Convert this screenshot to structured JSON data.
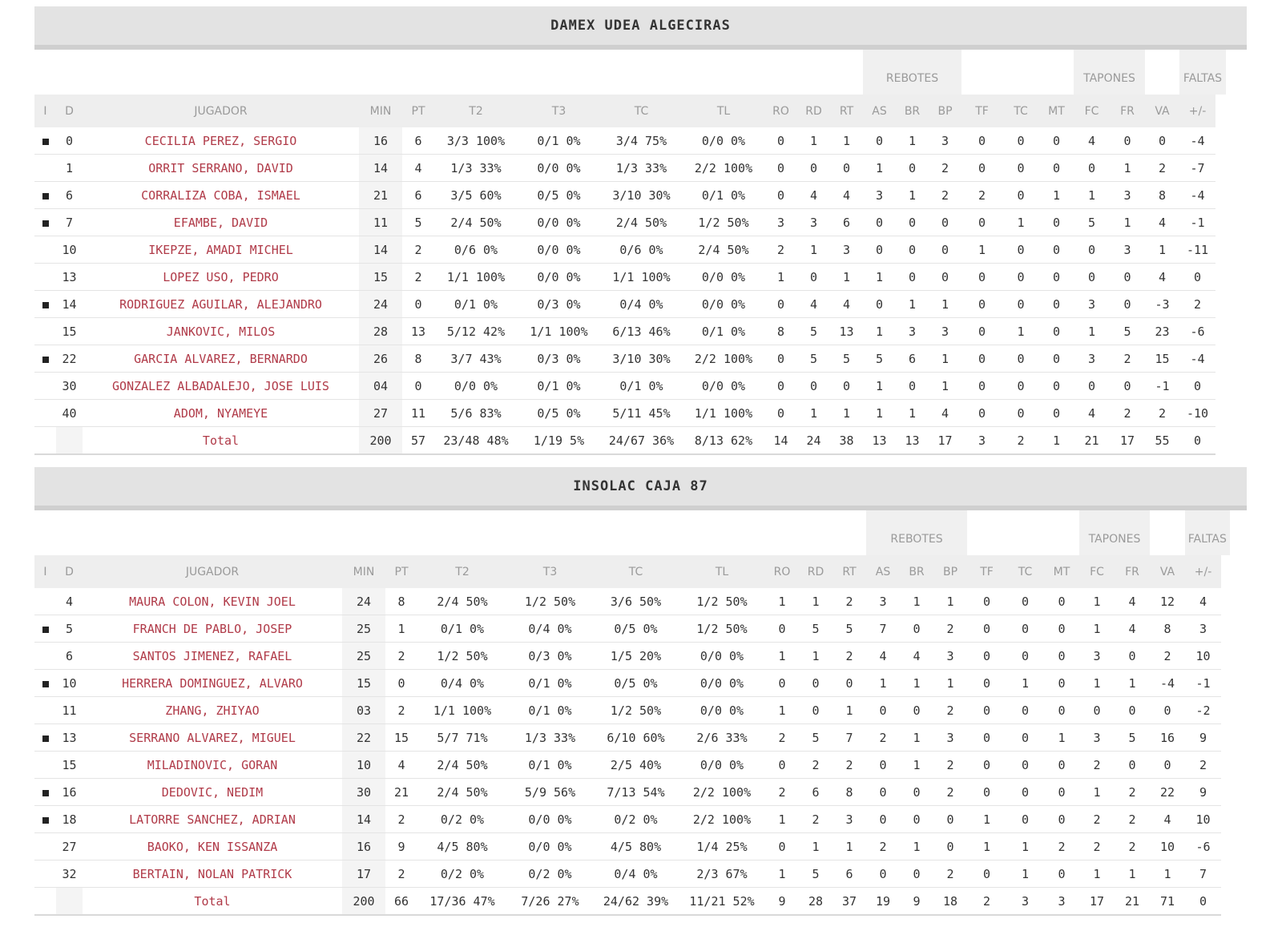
{
  "columns": [
    "I",
    "D",
    "JUGADOR",
    "MIN",
    "PT",
    "T2",
    "T3",
    "TC",
    "TL",
    "RO",
    "RD",
    "RT",
    "AS",
    "BR",
    "BP",
    "TF",
    "TC",
    "MT",
    "FC",
    "FR",
    "VA",
    "+/-"
  ],
  "groups": {
    "rebotes": "REBOTES",
    "tapones": "TAPONES",
    "faltas": "FALTAS"
  },
  "teams": [
    {
      "name": "DAMEX UDEA ALGECIRAS",
      "rows": [
        {
          "starter": true,
          "d": "0",
          "name": "CECILIA PEREZ, SERGIO",
          "stats": [
            "16",
            "6",
            "3/3 100%",
            "0/1 0%",
            "3/4 75%",
            "0/0 0%",
            "0",
            "1",
            "1",
            "0",
            "1",
            "3",
            "0",
            "0",
            "0",
            "4",
            "0",
            "0",
            "-4"
          ]
        },
        {
          "starter": false,
          "d": "1",
          "name": "ORRIT SERRANO, DAVID",
          "stats": [
            "14",
            "4",
            "1/3 33%",
            "0/0 0%",
            "1/3 33%",
            "2/2 100%",
            "0",
            "0",
            "0",
            "1",
            "0",
            "2",
            "0",
            "0",
            "0",
            "0",
            "1",
            "2",
            "-7"
          ]
        },
        {
          "starter": true,
          "d": "6",
          "name": "CORRALIZA COBA, ISMAEL",
          "stats": [
            "21",
            "6",
            "3/5 60%",
            "0/5 0%",
            "3/10 30%",
            "0/1 0%",
            "0",
            "4",
            "4",
            "3",
            "1",
            "2",
            "2",
            "0",
            "1",
            "1",
            "3",
            "8",
            "-4"
          ]
        },
        {
          "starter": true,
          "d": "7",
          "name": "EFAMBE, DAVID",
          "stats": [
            "11",
            "5",
            "2/4 50%",
            "0/0 0%",
            "2/4 50%",
            "1/2 50%",
            "3",
            "3",
            "6",
            "0",
            "0",
            "0",
            "0",
            "1",
            "0",
            "5",
            "1",
            "4",
            "-1"
          ]
        },
        {
          "starter": false,
          "d": "10",
          "name": "IKEPZE, AMADI MICHEL",
          "stats": [
            "14",
            "2",
            "0/6 0%",
            "0/0 0%",
            "0/6 0%",
            "2/4 50%",
            "2",
            "1",
            "3",
            "0",
            "0",
            "0",
            "1",
            "0",
            "0",
            "0",
            "3",
            "1",
            "-11"
          ]
        },
        {
          "starter": false,
          "d": "13",
          "name": "LOPEZ USO, PEDRO",
          "stats": [
            "15",
            "2",
            "1/1 100%",
            "0/0 0%",
            "1/1 100%",
            "0/0 0%",
            "1",
            "0",
            "1",
            "1",
            "0",
            "0",
            "0",
            "0",
            "0",
            "0",
            "0",
            "4",
            "0"
          ]
        },
        {
          "starter": true,
          "d": "14",
          "name": "RODRIGUEZ AGUILAR, ALEJANDRO",
          "stats": [
            "24",
            "0",
            "0/1 0%",
            "0/3 0%",
            "0/4 0%",
            "0/0 0%",
            "0",
            "4",
            "4",
            "0",
            "1",
            "1",
            "0",
            "0",
            "0",
            "3",
            "0",
            "-3",
            "2"
          ]
        },
        {
          "starter": false,
          "d": "15",
          "name": "JANKOVIC, MILOS",
          "stats": [
            "28",
            "13",
            "5/12 42%",
            "1/1 100%",
            "6/13 46%",
            "0/1 0%",
            "8",
            "5",
            "13",
            "1",
            "3",
            "3",
            "0",
            "1",
            "0",
            "1",
            "5",
            "23",
            "-6"
          ]
        },
        {
          "starter": true,
          "d": "22",
          "name": "GARCIA ALVAREZ, BERNARDO",
          "stats": [
            "26",
            "8",
            "3/7 43%",
            "0/3 0%",
            "3/10 30%",
            "2/2 100%",
            "0",
            "5",
            "5",
            "5",
            "6",
            "1",
            "0",
            "0",
            "0",
            "3",
            "2",
            "15",
            "-4"
          ]
        },
        {
          "starter": false,
          "d": "30",
          "name": "GONZALEZ ALBADALEJO, JOSE LUIS",
          "stats": [
            "04",
            "0",
            "0/0 0%",
            "0/1 0%",
            "0/1 0%",
            "0/0 0%",
            "0",
            "0",
            "0",
            "1",
            "0",
            "1",
            "0",
            "0",
            "0",
            "0",
            "0",
            "-1",
            "0"
          ]
        },
        {
          "starter": false,
          "d": "40",
          "name": "ADOM, NYAMEYE",
          "stats": [
            "27",
            "11",
            "5/6 83%",
            "0/5 0%",
            "5/11 45%",
            "1/1 100%",
            "0",
            "1",
            "1",
            "1",
            "1",
            "4",
            "0",
            "0",
            "0",
            "4",
            "2",
            "2",
            "-10"
          ]
        }
      ],
      "total": {
        "label": "Total",
        "stats": [
          "200",
          "57",
          "23/48 48%",
          "1/19 5%",
          "24/67 36%",
          "8/13 62%",
          "14",
          "24",
          "38",
          "13",
          "13",
          "17",
          "3",
          "2",
          "1",
          "21",
          "17",
          "55",
          "0"
        ]
      }
    },
    {
      "name": "INSOLAC CAJA 87",
      "rows": [
        {
          "starter": false,
          "d": "4",
          "name": "MAURA COLON, KEVIN JOEL",
          "stats": [
            "24",
            "8",
            "2/4 50%",
            "1/2 50%",
            "3/6 50%",
            "1/2 50%",
            "1",
            "1",
            "2",
            "3",
            "1",
            "1",
            "0",
            "0",
            "0",
            "1",
            "4",
            "12",
            "4"
          ]
        },
        {
          "starter": true,
          "d": "5",
          "name": "FRANCH DE PABLO, JOSEP",
          "stats": [
            "25",
            "1",
            "0/1 0%",
            "0/4 0%",
            "0/5 0%",
            "1/2 50%",
            "0",
            "5",
            "5",
            "7",
            "0",
            "2",
            "0",
            "0",
            "0",
            "1",
            "4",
            "8",
            "3"
          ]
        },
        {
          "starter": false,
          "d": "6",
          "name": "SANTOS JIMENEZ, RAFAEL",
          "stats": [
            "25",
            "2",
            "1/2 50%",
            "0/3 0%",
            "1/5 20%",
            "0/0 0%",
            "1",
            "1",
            "2",
            "4",
            "4",
            "3",
            "0",
            "0",
            "0",
            "3",
            "0",
            "2",
            "10"
          ]
        },
        {
          "starter": true,
          "d": "10",
          "name": "HERRERA DOMINGUEZ, ALVARO",
          "stats": [
            "15",
            "0",
            "0/4 0%",
            "0/1 0%",
            "0/5 0%",
            "0/0 0%",
            "0",
            "0",
            "0",
            "1",
            "1",
            "1",
            "0",
            "1",
            "0",
            "1",
            "1",
            "-4",
            "-1"
          ]
        },
        {
          "starter": false,
          "d": "11",
          "name": "ZHANG, ZHIYAO",
          "stats": [
            "03",
            "2",
            "1/1 100%",
            "0/1 0%",
            "1/2 50%",
            "0/0 0%",
            "1",
            "0",
            "1",
            "0",
            "0",
            "2",
            "0",
            "0",
            "0",
            "0",
            "0",
            "0",
            "-2"
          ]
        },
        {
          "starter": true,
          "d": "13",
          "name": "SERRANO ALVAREZ, MIGUEL",
          "stats": [
            "22",
            "15",
            "5/7 71%",
            "1/3 33%",
            "6/10 60%",
            "2/6 33%",
            "2",
            "5",
            "7",
            "2",
            "1",
            "3",
            "0",
            "0",
            "1",
            "3",
            "5",
            "16",
            "9"
          ]
        },
        {
          "starter": false,
          "d": "15",
          "name": "MILADINOVIC, GORAN",
          "stats": [
            "10",
            "4",
            "2/4 50%",
            "0/1 0%",
            "2/5 40%",
            "0/0 0%",
            "0",
            "2",
            "2",
            "0",
            "1",
            "2",
            "0",
            "0",
            "0",
            "2",
            "0",
            "0",
            "2"
          ]
        },
        {
          "starter": true,
          "d": "16",
          "name": "DEDOVIC, NEDIM",
          "stats": [
            "30",
            "21",
            "2/4 50%",
            "5/9 56%",
            "7/13 54%",
            "2/2 100%",
            "2",
            "6",
            "8",
            "0",
            "0",
            "2",
            "0",
            "0",
            "0",
            "1",
            "2",
            "22",
            "9"
          ]
        },
        {
          "starter": true,
          "d": "18",
          "name": "LATORRE SANCHEZ, ADRIAN",
          "stats": [
            "14",
            "2",
            "0/2 0%",
            "0/0 0%",
            "0/2 0%",
            "2/2 100%",
            "1",
            "2",
            "3",
            "0",
            "0",
            "0",
            "1",
            "0",
            "0",
            "2",
            "2",
            "4",
            "10"
          ]
        },
        {
          "starter": false,
          "d": "27",
          "name": "BAOKO, KEN ISSANZA",
          "stats": [
            "16",
            "9",
            "4/5 80%",
            "0/0 0%",
            "4/5 80%",
            "1/4 25%",
            "0",
            "1",
            "1",
            "2",
            "1",
            "0",
            "1",
            "1",
            "2",
            "2",
            "2",
            "10",
            "-6"
          ]
        },
        {
          "starter": false,
          "d": "32",
          "name": "BERTAIN, NOLAN PATRICK",
          "stats": [
            "17",
            "2",
            "0/2 0%",
            "0/2 0%",
            "0/4 0%",
            "2/3 67%",
            "1",
            "5",
            "6",
            "0",
            "0",
            "2",
            "0",
            "1",
            "0",
            "1",
            "1",
            "1",
            "7"
          ]
        }
      ],
      "total": {
        "label": "Total",
        "stats": [
          "200",
          "66",
          "17/36 47%",
          "7/26 27%",
          "24/62 39%",
          "11/21 52%",
          "9",
          "28",
          "37",
          "19",
          "9",
          "18",
          "2",
          "3",
          "3",
          "17",
          "21",
          "71",
          "0"
        ]
      }
    }
  ]
}
